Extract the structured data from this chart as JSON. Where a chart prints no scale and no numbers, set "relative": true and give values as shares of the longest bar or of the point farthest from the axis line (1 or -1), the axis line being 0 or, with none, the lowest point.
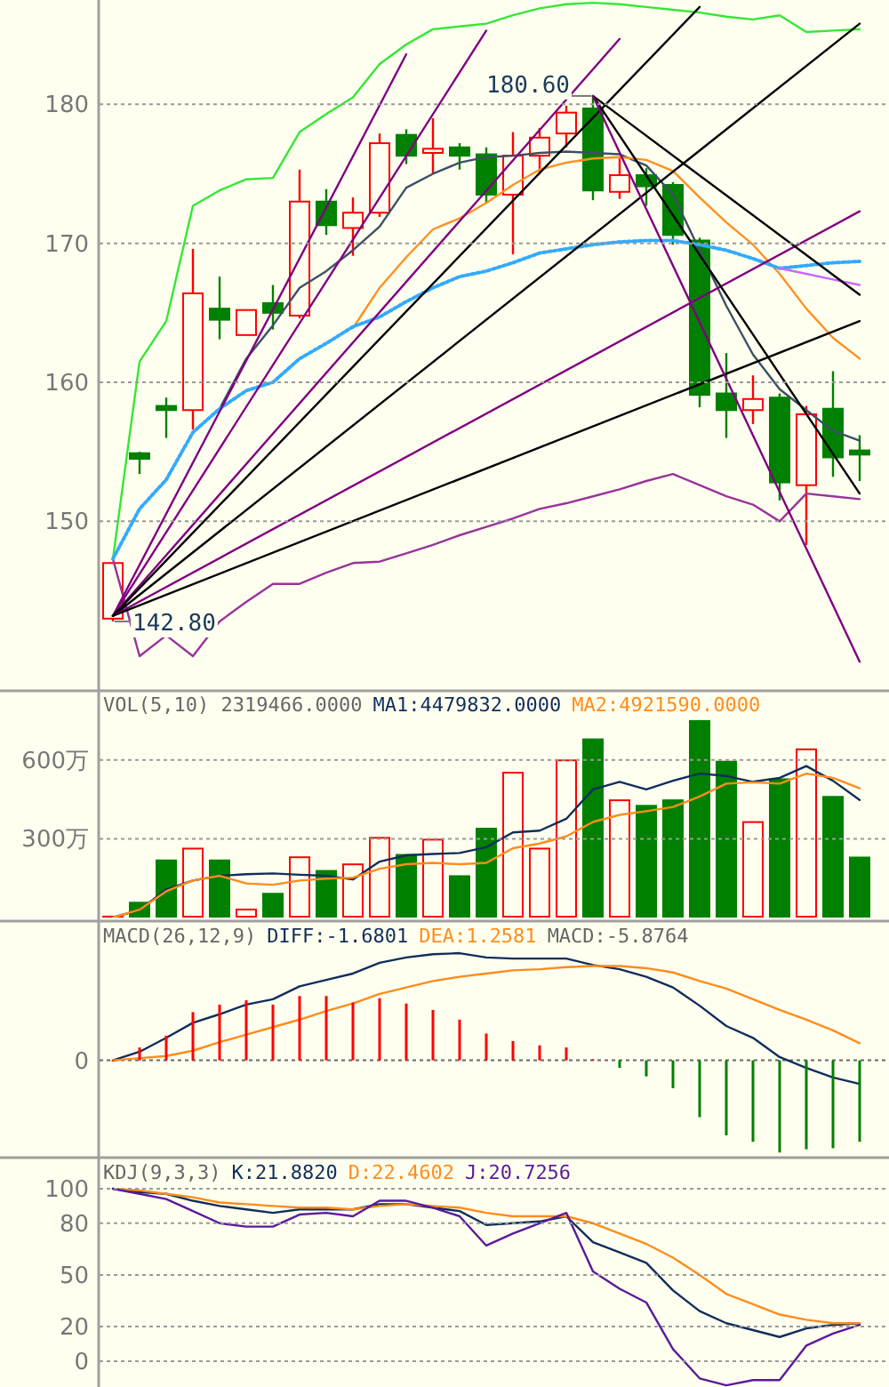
{
  "chart_data": [
    {
      "type": "candlestick",
      "categories": [
        null,
        null,
        null,
        null,
        null,
        null,
        null,
        null,
        null,
        null,
        null,
        null,
        null,
        null,
        null,
        null,
        null,
        null,
        null,
        null,
        null,
        null,
        null,
        null,
        null,
        null,
        null,
        null,
        null
      ],
      "ohlc": [
        [
          143,
          147,
          142.8,
          147
        ],
        [
          154.9,
          155,
          153.4,
          154.5
        ],
        [
          158.3,
          158.9,
          156,
          158
        ],
        [
          158,
          169.6,
          156.6,
          166.4
        ],
        [
          165.3,
          167.6,
          163.1,
          164.5
        ],
        [
          163.4,
          165.2,
          163.4,
          165.2
        ],
        [
          165.7,
          167,
          163.8,
          165
        ],
        [
          164.8,
          175.3,
          164.6,
          173
        ],
        [
          173,
          173.9,
          170.6,
          171.3
        ],
        [
          171.1,
          173.3,
          169.1,
          172.2
        ],
        [
          172.2,
          177.9,
          171.9,
          177.2
        ],
        [
          177.8,
          178.2,
          175.7,
          176.3
        ],
        [
          176.5,
          179,
          175,
          176.8
        ],
        [
          176.9,
          177.2,
          175.3,
          176.3
        ],
        [
          176.4,
          176.9,
          172.9,
          173.5
        ],
        [
          173.5,
          178,
          169.2,
          176.3
        ],
        [
          176.3,
          178.3,
          175,
          177.6
        ],
        [
          177.9,
          179.9,
          176.9,
          179.4
        ],
        [
          179.7,
          180.6,
          173.1,
          173.8
        ],
        [
          173.7,
          176.2,
          173.2,
          174.9
        ],
        [
          174.9,
          175.4,
          172.7,
          174.1
        ],
        [
          174.2,
          174.4,
          169.9,
          170.6
        ],
        [
          170.2,
          170.4,
          158.2,
          159.1
        ],
        [
          159.2,
          162.1,
          156,
          158
        ],
        [
          158,
          160.5,
          157,
          158.8
        ],
        [
          158.9,
          159.2,
          151.5,
          152.8
        ],
        [
          152.6,
          158.3,
          148.3,
          157.7
        ],
        [
          158.1,
          160.8,
          153.2,
          154.6
        ],
        [
          155.1,
          156.2,
          152.9,
          154.8
        ]
      ],
      "colors": [
        "#ff0000",
        "#008000",
        "#008000",
        "#ff0000",
        "#008000",
        "#ff0000",
        "#008000",
        "#ff0000",
        "#008000",
        "#ff0000",
        "#ff0000",
        "#008000",
        "#ff0000",
        "#008000",
        "#008000",
        "#ff0000",
        "#ff0000",
        "#ff0000",
        "#008000",
        "#ff0000",
        "#008000",
        "#008000",
        "#008000",
        "#008000",
        "#ff0000",
        "#008000",
        "#ff0000",
        "#008000",
        "#008000"
      ],
      "ylim": [
        138,
        187.5
      ],
      "yticks": [
        150,
        160,
        170,
        180
      ],
      "grid": "y",
      "annotations": [
        "180.60",
        "142.80"
      ],
      "series": [
        {
          "type": "line",
          "color": "#33e833",
          "values": [
            147.3,
            161.5,
            164.4,
            172.7,
            173.8,
            174.6,
            174.7,
            178.0,
            179.3,
            180.5,
            182.9,
            184.3,
            185.4,
            185.6,
            185.8,
            186.4,
            186.9,
            187.2,
            187.3,
            187.2,
            187.0,
            186.8,
            186.6,
            186.3,
            186.1,
            186.4,
            185.2,
            185.3,
            185.4
          ]
        },
        {
          "type": "line",
          "color": "#993399",
          "values": [
            147.3,
            140.3,
            141.8,
            140.3,
            142.8,
            144.2,
            145.5,
            145.5,
            146.3,
            147.0,
            147.1,
            147.7,
            148.3,
            149.0,
            149.6,
            150.2,
            150.9,
            151.3,
            151.8,
            152.3,
            152.9,
            153.4,
            152.6,
            151.8,
            151.2,
            150.0,
            152.0,
            151.8,
            151.6
          ]
        },
        {
          "type": "line",
          "color": "#3c5064",
          "values": [
            null,
            null,
            null,
            null,
            158.1,
            161.7,
            164.1,
            166.8,
            168.0,
            169.5,
            171.2,
            174.0,
            175.0,
            175.8,
            176.2,
            176.3,
            176.5,
            176.6,
            176.5,
            176.4,
            175.6,
            173.5,
            169.5,
            165.5,
            162.0,
            159.5,
            158.0,
            156.5,
            155.8
          ]
        },
        {
          "type": "line",
          "color": "#ff9020",
          "values": [
            null,
            null,
            null,
            null,
            null,
            null,
            null,
            null,
            null,
            163.9,
            166.8,
            169.0,
            171.0,
            171.8,
            172.9,
            174.2,
            175.3,
            175.8,
            176.1,
            176.2,
            176.0,
            175.2,
            173.3,
            171.5,
            169.9,
            167.8,
            165.3,
            163.2,
            161.7
          ]
        },
        {
          "type": "line",
          "color": "#33aaff",
          "line_style": "dotted",
          "values": [
            147.3,
            150.9,
            153.0,
            156.4,
            158.1,
            159.4,
            160.0,
            161.7,
            162.8,
            164.0,
            164.7,
            165.8,
            166.8,
            167.6,
            168.0,
            168.6,
            169.3,
            169.6,
            169.9,
            170.1,
            170.2,
            170.2,
            169.9,
            169.5,
            168.9,
            168.2,
            168.4,
            168.6,
            168.7
          ]
        },
        {
          "type": "line",
          "color": "#cc66ff",
          "values": [
            null,
            null,
            null,
            null,
            null,
            null,
            null,
            null,
            null,
            null,
            null,
            null,
            null,
            null,
            null,
            null,
            null,
            null,
            null,
            null,
            null,
            null,
            null,
            null,
            null,
            168.2,
            167.8,
            167.4,
            167.0
          ]
        },
        {
          "type": "line",
          "color": "#800080",
          "values": [
            143.2,
            null,
            null,
            null,
            null,
            null,
            null,
            null,
            null,
            null,
            null,
            183.6,
            null,
            null,
            null,
            null,
            null,
            null,
            null,
            null,
            null,
            null,
            null,
            null,
            null,
            null,
            null,
            null,
            null
          ]
        },
        {
          "type": "line",
          "color": "#800080",
          "values": [
            143.2,
            null,
            null,
            null,
            null,
            null,
            null,
            null,
            null,
            null,
            null,
            null,
            null,
            null,
            185.3,
            null,
            null,
            null,
            null,
            null,
            null,
            null,
            null,
            null,
            null,
            null,
            null,
            null,
            null
          ]
        },
        {
          "type": "line",
          "color": "#800080",
          "values": [
            143.2,
            null,
            null,
            null,
            null,
            null,
            null,
            null,
            null,
            null,
            null,
            null,
            null,
            null,
            null,
            null,
            null,
            null,
            null,
            184.7,
            null,
            null,
            null,
            null,
            null,
            null,
            null,
            null,
            null
          ]
        },
        {
          "type": "line",
          "color": "#000000",
          "values": [
            143.2,
            null,
            null,
            null,
            null,
            null,
            null,
            null,
            null,
            null,
            null,
            null,
            null,
            null,
            null,
            null,
            null,
            null,
            null,
            null,
            null,
            null,
            187.0,
            null,
            null,
            null,
            null,
            null,
            null
          ]
        },
        {
          "type": "line",
          "color": "#000000",
          "values": [
            143.2,
            null,
            null,
            null,
            null,
            null,
            null,
            null,
            null,
            null,
            null,
            null,
            null,
            null,
            null,
            null,
            null,
            null,
            null,
            null,
            null,
            null,
            null,
            null,
            null,
            null,
            null,
            null,
            185.8
          ]
        },
        {
          "type": "line",
          "color": "#800080",
          "values": [
            143.2,
            null,
            null,
            null,
            null,
            null,
            null,
            null,
            null,
            null,
            null,
            null,
            null,
            null,
            null,
            null,
            null,
            null,
            null,
            null,
            null,
            null,
            null,
            null,
            null,
            null,
            null,
            null,
            172.3
          ]
        },
        {
          "type": "line",
          "color": "#000000",
          "values": [
            143.2,
            null,
            null,
            null,
            null,
            null,
            null,
            null,
            null,
            null,
            null,
            null,
            null,
            null,
            null,
            null,
            null,
            null,
            null,
            null,
            null,
            null,
            null,
            null,
            null,
            null,
            null,
            null,
            164.4
          ]
        },
        {
          "type": "line",
          "color": "#000000",
          "values": [
            null,
            null,
            null,
            null,
            null,
            null,
            null,
            null,
            null,
            null,
            null,
            null,
            null,
            null,
            null,
            null,
            null,
            null,
            180.6,
            null,
            null,
            null,
            null,
            null,
            null,
            null,
            null,
            null,
            166.3
          ]
        },
        {
          "type": "line",
          "color": "#000000",
          "values": [
            null,
            null,
            null,
            null,
            null,
            null,
            null,
            null,
            null,
            null,
            null,
            null,
            null,
            null,
            null,
            null,
            null,
            null,
            180.6,
            null,
            null,
            null,
            null,
            null,
            null,
            null,
            null,
            null,
            152.0
          ]
        },
        {
          "type": "line",
          "color": "#800080",
          "values": [
            null,
            null,
            null,
            null,
            null,
            null,
            null,
            null,
            null,
            null,
            null,
            null,
            null,
            null,
            null,
            null,
            null,
            null,
            180.6,
            null,
            null,
            null,
            null,
            null,
            null,
            null,
            null,
            null,
            139.9
          ]
        }
      ]
    },
    {
      "type": "bar",
      "title": "VOL(5,10) 2319466.0000",
      "categories": [
        null,
        null,
        null,
        null,
        null,
        null,
        null,
        null,
        null,
        null,
        null,
        null,
        null,
        null,
        null,
        null,
        null,
        null,
        null,
        null,
        null,
        null,
        null,
        null,
        null,
        null,
        null,
        null,
        null
      ],
      "ylim": [
        0,
        860
      ],
      "yticks": [
        {
          "value": 300,
          "label": "300万"
        },
        {
          "value": 600,
          "label": "600万"
        }
      ],
      "grid": "y",
      "legend": "top",
      "series": [
        {
          "type": "bar",
          "colors": [
            "#ff0000",
            "#008000",
            "#008000",
            "#ff0000",
            "#008000",
            "#ff0000",
            "#008000",
            "#ff0000",
            "#008000",
            "#ff0000",
            "#ff0000",
            "#008000",
            "#ff0000",
            "#008000",
            "#008000",
            "#ff0000",
            "#ff0000",
            "#ff0000",
            "#008000",
            "#ff0000",
            "#008000",
            "#008000",
            "#008000",
            "#008000",
            "#ff0000",
            "#008000",
            "#ff0000",
            "#008000",
            "#008000"
          ],
          "values": [
            7,
            60,
            221,
            266,
            221,
            34,
            94,
            233,
            181,
            206,
            307,
            242,
            300,
            161,
            342,
            555,
            266,
            602,
            682,
            450,
            429,
            450,
            752,
            597,
            367,
            530,
            644,
            463,
            232
          ]
        },
        {
          "type": "line",
          "name": "MA1:4479832.0000",
          "color": "#102e5a",
          "values": [
            0,
            29,
            107,
            141,
            159,
            165,
            168,
            163,
            159,
            145,
            213,
            237,
            242,
            246,
            268,
            324,
            331,
            376,
            488,
            517,
            488,
            521,
            548,
            539,
            517,
            532,
            577,
            521,
            448
          ]
        },
        {
          "type": "line",
          "name": "MA2:4921590.0000",
          "color": "#ff8c1a",
          "values": [
            0,
            30,
            100,
            141,
            159,
            130,
            125,
            141,
            148,
            152,
            186,
            203,
            208,
            203,
            208,
            264,
            282,
            309,
            364,
            391,
            405,
            421,
            461,
            510,
            515,
            510,
            548,
            532,
            492
          ]
        }
      ]
    },
    {
      "type": "bar",
      "title": "MACD(26,12,9)",
      "categories": [
        null,
        null,
        null,
        null,
        null,
        null,
        null,
        null,
        null,
        null,
        null,
        null,
        null,
        null,
        null,
        null,
        null,
        null,
        null,
        null,
        null,
        null,
        null,
        null,
        null,
        null,
        null,
        null,
        null
      ],
      "relative": true,
      "annotations": [
        "0",
        "MACD:-5.8764"
      ],
      "ref_lines": [
        {
          "axis": "y",
          "value": 0,
          "color": "#666666",
          "line_style": "dotted"
        }
      ],
      "legend": "top left",
      "series": [
        {
          "type": "line",
          "name": "DIFF:-1.6801",
          "color": "#102e5a",
          "values": [
            0,
            0.08,
            0.21,
            0.35,
            0.43,
            0.52,
            0.57,
            0.69,
            0.75,
            0.81,
            0.91,
            0.96,
            0.99,
            1,
            0.96,
            0.95,
            0.95,
            0.95,
            0.89,
            0.85,
            0.78,
            0.68,
            0.51,
            0.32,
            0.21,
            0.03,
            -0.07,
            -0.16,
            -0.22
          ]
        },
        {
          "type": "line",
          "name": "DEA:1.2581",
          "color": "#ff8c1a",
          "values": [
            0,
            0.02,
            0.04,
            0.09,
            0.17,
            0.24,
            0.31,
            0.38,
            0.46,
            0.53,
            0.62,
            0.68,
            0.74,
            0.78,
            0.81,
            0.84,
            0.85,
            0.87,
            0.88,
            0.88,
            0.86,
            0.82,
            0.74,
            0.67,
            0.57,
            0.47,
            0.38,
            0.28,
            0.16
          ]
        },
        {
          "type": "bar",
          "colors": [
            "#ff0000",
            "#ff0000",
            "#ff0000",
            "#ff0000",
            "#ff0000",
            "#ff0000",
            "#ff0000",
            "#ff0000",
            "#ff0000",
            "#ff0000",
            "#ff0000",
            "#ff0000",
            "#ff0000",
            "#ff0000",
            "#ff0000",
            "#ff0000",
            "#ff0000",
            "#ff0000",
            "#ff0000",
            "#008000",
            "#008000",
            "#008000",
            "#008000",
            "#008000",
            "#008000",
            "#008000",
            "#008000",
            "#008000",
            "#008000"
          ],
          "values": [
            0,
            0.12,
            0.23,
            0.45,
            0.52,
            0.56,
            0.52,
            0.6,
            0.6,
            0.54,
            0.58,
            0.53,
            0.47,
            0.38,
            0.25,
            0.18,
            0.14,
            0.12,
            0.01,
            -0.07,
            -0.15,
            -0.26,
            -0.53,
            -0.7,
            -0.76,
            -0.86,
            -0.83,
            -0.82,
            -0.76
          ]
        }
      ]
    },
    {
      "type": "line",
      "title": "KDJ(9,3,3)",
      "categories": [
        null,
        null,
        null,
        null,
        null,
        null,
        null,
        null,
        null,
        null,
        null,
        null,
        null,
        null,
        null,
        null,
        null,
        null,
        null,
        null,
        null,
        null,
        null,
        null,
        null,
        null,
        null,
        null,
        null
      ],
      "ylim": [
        -15,
        117
      ],
      "yticks": [
        0,
        20,
        50,
        80,
        100
      ],
      "grid": "y",
      "legend": "top left",
      "series": [
        {
          "name": "K:21.8820",
          "color": "#102e5a",
          "values": [
            100,
            98,
            97,
            93,
            90,
            88,
            86,
            88,
            88,
            88,
            91,
            91,
            89,
            87,
            79,
            80,
            81,
            84,
            69,
            63,
            57,
            41,
            29,
            22,
            18,
            14,
            19,
            21,
            22
          ]
        },
        {
          "name": "D:22.4602",
          "color": "#ff8c1a",
          "values": [
            100,
            99,
            97,
            95,
            92,
            91,
            90,
            89,
            89,
            88,
            90,
            91,
            90,
            89,
            86,
            84,
            84,
            84,
            80,
            74,
            68,
            60,
            50,
            39,
            33,
            27,
            24,
            22,
            22
          ]
        },
        {
          "name": "J:20.7256",
          "color": "#5a1a9a",
          "values": [
            100,
            97,
            94,
            87,
            80,
            78,
            78,
            85,
            86,
            84,
            93,
            93,
            89,
            84,
            67,
            74,
            80,
            86,
            52,
            42,
            34,
            7,
            -10,
            -14,
            -11,
            -11,
            9,
            16,
            21
          ]
        }
      ]
    }
  ]
}
